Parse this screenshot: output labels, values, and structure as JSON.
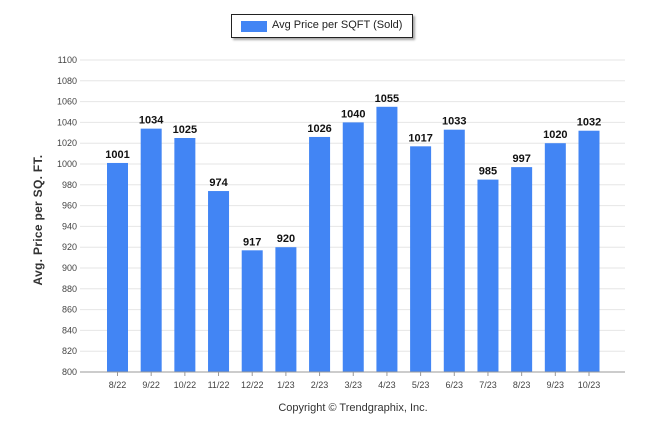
{
  "chart_data": {
    "type": "bar",
    "title": "",
    "xlabel": "",
    "ylabel": "Avg. Price per SQ. FT.",
    "legend": {
      "position": "top-center",
      "entries": [
        "Avg Price per SQFT (Sold)"
      ]
    },
    "grid": true,
    "ylim": [
      800,
      1100
    ],
    "yticks": [
      800,
      820,
      840,
      860,
      880,
      900,
      920,
      940,
      960,
      980,
      1000,
      1020,
      1040,
      1060,
      1080,
      1100
    ],
    "categories": [
      "8/22",
      "9/22",
      "10/22",
      "11/22",
      "12/22",
      "1/23",
      "2/23",
      "3/23",
      "4/23",
      "5/23",
      "6/23",
      "7/23",
      "8/23",
      "9/23",
      "10/23"
    ],
    "series": [
      {
        "name": "Avg Price per SQFT (Sold)",
        "values": [
          1001,
          1034,
          1025,
          974,
          917,
          920,
          1026,
          1040,
          1055,
          1017,
          1033,
          985,
          997,
          1020,
          1032
        ]
      }
    ],
    "bar_color": "#4285f4",
    "data_labels": true
  },
  "footer": {
    "copyright": "Copyright © Trendgraphix, Inc."
  }
}
